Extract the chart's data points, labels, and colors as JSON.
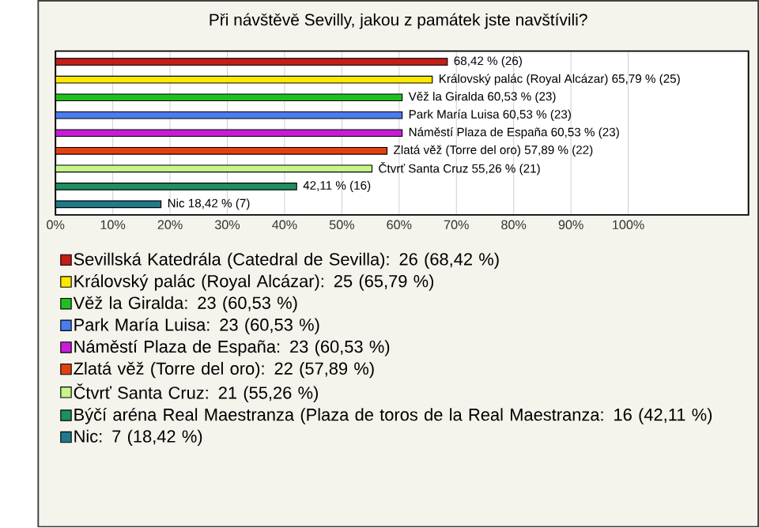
{
  "chart_data": {
    "type": "bar",
    "orientation": "horizontal",
    "title": "Při návštěvě Sevilly, jakou z památek jste navštívili?",
    "categories": [
      null,
      null,
      null,
      null,
      null,
      null,
      null,
      null,
      null
    ],
    "series": [
      {
        "name": "Sevillská Katedrála (Catedral de Sevilla): 26 (68,42 %)",
        "color": "#c41e16",
        "values": [
          68.42,
          null,
          null,
          null,
          null,
          null,
          null,
          null,
          null
        ],
        "value_labels": [
          "68,42 % (26)",
          null,
          null,
          null,
          null,
          null,
          null,
          null,
          null
        ]
      },
      {
        "name": "Královský palác (Royal Alcázar): 25 (65,79 %)",
        "color": "#ffe800",
        "values": [
          null,
          65.79,
          null,
          null,
          null,
          null,
          null,
          null,
          null
        ],
        "value_labels": [
          null,
          "Královský palác (Royal Alcázar) 65,79 % (25)",
          null,
          null,
          null,
          null,
          null,
          null,
          null
        ]
      },
      {
        "name": "Věž la Giralda: 23 (60,53 %)",
        "color": "#1fbf1f",
        "values": [
          null,
          null,
          60.53,
          null,
          null,
          null,
          null,
          null,
          null
        ],
        "value_labels": [
          null,
          null,
          "Věž la Giralda 60,53 % (23)",
          null,
          null,
          null,
          null,
          null,
          null
        ]
      },
      {
        "name": "Park María Luisa: 23 (60,53 %)",
        "color": "#4a7cf0",
        "values": [
          null,
          null,
          null,
          60.53,
          null,
          null,
          null,
          null,
          null
        ],
        "value_labels": [
          null,
          null,
          null,
          "Park María Luisa 60,53 % (23)",
          null,
          null,
          null,
          null,
          null
        ]
      },
      {
        "name": "Náměstí Plaza de España: 23 (60,53 %)",
        "color": "#c51ed6",
        "values": [
          null,
          null,
          null,
          null,
          60.53,
          null,
          null,
          null,
          null
        ],
        "value_labels": [
          null,
          null,
          null,
          null,
          "Náměstí Plaza de España 60,53 % (23)",
          null,
          null,
          null,
          null
        ]
      },
      {
        "name": "Zlatá věž (Torre del oro): 22 (57,89 %)",
        "color": "#e2410f",
        "values": [
          null,
          null,
          null,
          null,
          null,
          57.89,
          null,
          null,
          null
        ],
        "value_labels": [
          null,
          null,
          null,
          null,
          null,
          "Zlatá věž (Torre del oro) 57,89 % (22)",
          null,
          null,
          null
        ]
      },
      {
        "name": "Čtvrť Santa Cruz: 21 (55,26 %)",
        "color": "#c6f58a",
        "values": [
          null,
          null,
          null,
          null,
          null,
          null,
          55.26,
          null,
          null
        ],
        "value_labels": [
          null,
          null,
          null,
          null,
          null,
          null,
          "Čtvrť Santa Cruz 55,26 % (21)",
          null,
          null
        ]
      },
      {
        "name": "Býčí aréna Real Maestranza (Plaza de toros de la Real Maestranza: 16 (42,11 %)",
        "color": "#1e9060",
        "values": [
          null,
          null,
          null,
          null,
          null,
          null,
          null,
          42.11,
          null
        ],
        "value_labels": [
          null,
          null,
          null,
          null,
          null,
          null,
          null,
          "42,11 % (16)",
          null
        ]
      },
      {
        "name": "Nic: 7 (18,42 %)",
        "color": "#1f7a8c",
        "values": [
          null,
          null,
          null,
          null,
          null,
          null,
          null,
          null,
          18.42
        ],
        "value_labels": [
          null,
          null,
          null,
          null,
          null,
          null,
          null,
          null,
          "Nic 18,42 % (7)"
        ]
      }
    ],
    "xlim": [
      0,
      121
    ],
    "xticks": [
      {
        "value": 0,
        "label": "0%"
      },
      {
        "value": 10,
        "label": "10%"
      },
      {
        "value": 20,
        "label": "20%"
      },
      {
        "value": 30,
        "label": "30%"
      },
      {
        "value": 40,
        "label": "40%"
      },
      {
        "value": 50,
        "label": "50%"
      },
      {
        "value": 60,
        "label": "60%"
      },
      {
        "value": 70,
        "label": "70%"
      },
      {
        "value": 80,
        "label": "80%"
      },
      {
        "value": 90,
        "label": "90%"
      },
      {
        "value": 100,
        "label": "100%"
      }
    ],
    "grid": "x",
    "legend": "bottom"
  }
}
